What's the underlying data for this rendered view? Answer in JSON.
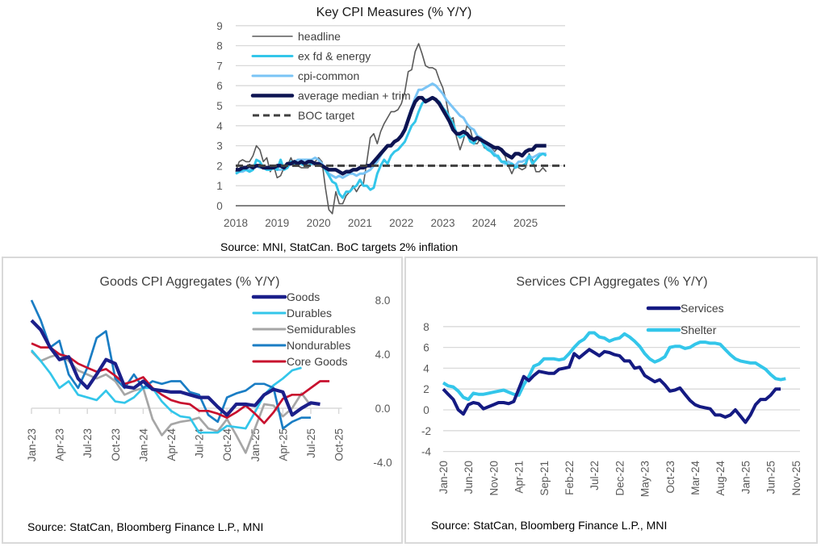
{
  "chart_data": [
    {
      "id": "key-cpi",
      "type": "line",
      "title": "Key CPI Measures (% Y/Y)",
      "source": "Source:  MNI, StatCan.  BoC targets 2% inflation",
      "x_start": "2018-01",
      "frequency": "monthly",
      "x_tick_labels": [
        "2018",
        "2019",
        "2020",
        "2021",
        "2022",
        "2023",
        "2024",
        "2025"
      ],
      "y_tick_labels": [
        "0",
        "1",
        "2",
        "3",
        "4",
        "5",
        "6",
        "7",
        "8",
        "9"
      ],
      "ylim": [
        0,
        9
      ],
      "grid": true,
      "legend_position": "top-left",
      "series": [
        {
          "name": "headline",
          "color": "#595959",
          "style": "thin",
          "values": [
            1.7,
            2.2,
            2.3,
            2.2,
            2.2,
            2.5,
            3.0,
            2.8,
            2.2,
            2.4,
            1.7,
            2.0,
            1.4,
            1.5,
            1.9,
            2.0,
            2.4,
            2.0,
            2.0,
            1.9,
            1.9,
            1.9,
            2.2,
            2.2,
            2.4,
            2.2,
            0.9,
            -0.2,
            -0.4,
            0.7,
            0.1,
            0.1,
            0.5,
            0.7,
            1.0,
            0.7,
            1.0,
            1.1,
            2.2,
            3.4,
            3.6,
            3.1,
            3.7,
            4.1,
            4.4,
            4.7,
            4.7,
            4.8,
            5.1,
            5.7,
            6.7,
            6.8,
            7.7,
            8.1,
            7.6,
            7.0,
            6.9,
            6.9,
            6.8,
            6.3,
            5.9,
            5.2,
            4.3,
            4.4,
            3.4,
            2.8,
            3.3,
            4.0,
            3.8,
            3.1,
            3.1,
            3.4,
            2.9,
            2.8,
            2.9,
            2.7,
            2.9,
            2.7,
            2.5,
            2.0,
            1.6,
            2.0,
            1.9,
            1.8,
            1.9,
            2.6,
            2.3,
            1.7,
            1.7,
            1.9,
            1.7
          ]
        },
        {
          "name": "ex fd & energy",
          "color": "#33c6ea",
          "style": "medium",
          "values": [
            1.6,
            1.7,
            1.8,
            1.8,
            1.7,
            1.8,
            2.3,
            2.2,
            1.9,
            1.8,
            1.8,
            1.9,
            1.8,
            2.3,
            1.8,
            1.9,
            2.2,
            2.1,
            2.1,
            2.1,
            2.0,
            2.0,
            2.1,
            2.1,
            2.1,
            2.0,
            1.8,
            1.5,
            1.2,
            1.1,
            0.6,
            0.4,
            0.7,
            0.7,
            0.9,
            1.0,
            1.3,
            1.0,
            1.0,
            0.8,
            0.9,
            1.6,
            2.0,
            2.3,
            2.1,
            2.5,
            2.7,
            2.8,
            3.0,
            3.2,
            3.6,
            4.0,
            4.2,
            4.7,
            5.1,
            5.3,
            5.3,
            5.4,
            5.3,
            5.2,
            4.9,
            4.7,
            4.4,
            4.1,
            3.6,
            3.4,
            3.5,
            3.6,
            3.2,
            3.1,
            3.4,
            3.3,
            3.0,
            2.8,
            2.7,
            2.5,
            2.5,
            2.2,
            2.2,
            2.0,
            2.1,
            1.9,
            2.0,
            2.0,
            2.1,
            2.5,
            2.1,
            2.3,
            2.5,
            2.6,
            2.5
          ]
        },
        {
          "name": "cpi-common",
          "color": "#7ac4f5",
          "style": "medium",
          "values": [
            1.6,
            1.7,
            1.7,
            1.8,
            1.8,
            1.9,
            2.0,
            1.9,
            1.9,
            1.8,
            1.8,
            1.9,
            1.8,
            1.8,
            1.9,
            2.0,
            2.1,
            2.2,
            2.3,
            2.3,
            2.3,
            2.3,
            2.3,
            2.4,
            2.3,
            2.1,
            1.8,
            1.6,
            1.5,
            1.4,
            1.5,
            1.4,
            1.5,
            1.6,
            1.6,
            1.5,
            1.6,
            1.6,
            1.7,
            1.8,
            2.0,
            2.2,
            2.5,
            2.8,
            3.0,
            3.0,
            3.2,
            3.3,
            3.5,
            3.8,
            4.4,
            4.9,
            5.4,
            5.8,
            5.8,
            5.9,
            6.0,
            6.1,
            6.0,
            5.8,
            5.6,
            5.3,
            5.1,
            4.9,
            4.7,
            4.5,
            4.4,
            4.1,
            3.9,
            3.8,
            3.5,
            3.4,
            3.2,
            3.0,
            2.8,
            2.6,
            2.4,
            2.2,
            2.1,
            2.2,
            2.1,
            2.0,
            2.2,
            2.2,
            2.3,
            2.5,
            2.4,
            2.5,
            2.6,
            2.6,
            2.6
          ]
        },
        {
          "name": "average median + trim",
          "color": "#0d1452",
          "style": "thick",
          "values": [
            1.8,
            1.8,
            1.9,
            1.9,
            2.0,
            1.9,
            2.0,
            2.0,
            1.9,
            1.9,
            1.9,
            1.9,
            2.0,
            2.0,
            1.9,
            2.1,
            2.1,
            2.2,
            2.1,
            2.2,
            2.1,
            2.2,
            2.2,
            2.1,
            2.1,
            2.0,
            1.9,
            1.8,
            1.8,
            1.8,
            1.7,
            1.6,
            1.7,
            1.7,
            1.8,
            1.8,
            1.9,
            1.9,
            2.0,
            2.0,
            2.2,
            2.4,
            2.6,
            2.8,
            3.0,
            3.0,
            3.2,
            3.3,
            3.5,
            3.8,
            4.3,
            4.8,
            5.2,
            5.4,
            5.4,
            5.2,
            5.3,
            5.4,
            5.3,
            5.1,
            4.8,
            4.5,
            4.2,
            3.8,
            3.6,
            3.6,
            3.7,
            3.6,
            3.4,
            3.3,
            3.4,
            3.3,
            3.2,
            3.1,
            3.0,
            2.9,
            2.9,
            2.8,
            2.6,
            2.5,
            2.4,
            2.6,
            2.6,
            2.5,
            2.7,
            2.8,
            2.8,
            3.0,
            3.0,
            3.0,
            3.0
          ]
        },
        {
          "name": "BOC target",
          "color": "#404040",
          "style": "dashed",
          "values": [
            2
          ]
        }
      ]
    },
    {
      "id": "goods-cpi",
      "type": "line",
      "title": "Goods CPI Aggregates (% Y/Y)",
      "source": "Source: StatCan, Bloomberg Finance L.P., MNI",
      "x_start": "2023-01",
      "frequency": "monthly",
      "x_tick_labels": [
        "Jan-23",
        "Apr-23",
        "Jul-23",
        "Oct-23",
        "Jan-24",
        "Apr-24",
        "Jul-24",
        "Oct-24",
        "Jan-25",
        "Apr-25",
        "Jul-25",
        "Oct-25"
      ],
      "y_tick_labels": [
        "8.0",
        "4.0",
        "0.0",
        "-4.0"
      ],
      "ylim": [
        -4,
        8
      ],
      "grid": false,
      "legend_position": "top-right",
      "series": [
        {
          "name": "Goods",
          "color": "#1b1f8a",
          "style": "thick",
          "values": [
            6.5,
            5.8,
            4.5,
            3.6,
            3.8,
            2.2,
            1.5,
            2.5,
            3.6,
            3.3,
            1.6,
            1.5,
            2.0,
            1.4,
            1.3,
            1.2,
            1.2,
            1.0,
            0.8,
            0.8,
            0.1,
            -0.5,
            0.3,
            0.3,
            0.2,
            1.0,
            1.4,
            1.2,
            -0.5,
            0.0,
            0.4,
            0.3
          ]
        },
        {
          "name": "Durables",
          "color": "#33c6ea",
          "style": "medium",
          "values": [
            4.3,
            3.5,
            2.6,
            1.5,
            2.0,
            1.0,
            0.8,
            0.6,
            1.3,
            0.5,
            0.4,
            0.8,
            1.5,
            1.5,
            0.5,
            -0.2,
            -0.6,
            -0.7,
            -1.8,
            -1.8,
            -1.8,
            -1.3,
            -1.4,
            -1.5,
            -0.3,
            1.0,
            1.7,
            2.2,
            2.8,
            3.0
          ]
        },
        {
          "name": "Semidurables",
          "color": "#a6a6a6",
          "style": "medium",
          "values": [
            4.2,
            3.5,
            3.8,
            4.0,
            3.5,
            2.8,
            2.5,
            2.2,
            2.5,
            2.0,
            1.0,
            1.3,
            1.5,
            -0.8,
            -2.0,
            -1.2,
            -1.0,
            -0.9,
            -0.7,
            -1.5,
            -1.7,
            -0.8,
            -2.0,
            -3.3,
            -1.5,
            0.3,
            0.2,
            -0.6,
            0.0,
            1.1,
            0.2
          ]
        },
        {
          "name": "Nondurables",
          "color": "#1a7dc4",
          "style": "medium",
          "values": [
            8.0,
            6.5,
            4.5,
            5.0,
            2.5,
            1.5,
            3.0,
            5.2,
            5.7,
            2.2,
            1.5,
            2.5,
            1.5,
            2.0,
            1.8,
            2.0,
            2.0,
            1.2,
            1.0,
            -0.5,
            -1.0,
            0.8,
            1.1,
            1.3,
            1.8,
            1.8,
            1.5,
            -1.5,
            -1.0,
            -0.7,
            -0.7
          ]
        },
        {
          "name": "Core Goods",
          "color": "#c8102e",
          "style": "medium",
          "values": [
            4.8,
            4.5,
            4.5,
            4.0,
            3.8,
            3.3,
            3.0,
            2.7,
            2.9,
            2.4,
            1.8,
            2.0,
            2.3,
            1.5,
            1.0,
            0.6,
            0.4,
            0.3,
            -0.2,
            -0.2,
            -0.4,
            -0.7,
            -0.3,
            0.2,
            -0.4,
            -1.1,
            -0.3,
            0.7,
            1.0,
            1.0,
            1.5,
            2.0,
            2.0
          ]
        }
      ]
    },
    {
      "id": "services-cpi",
      "type": "line",
      "title": "Services CPI Aggregates (% Y/Y)",
      "source": "Source: StatCan, Bloomberg Finance L.P., MNI",
      "x_start": "2020-01",
      "frequency": "monthly",
      "x_tick_labels": [
        "Jan-20",
        "Jun-20",
        "Nov-20",
        "Apr-21",
        "Sep-21",
        "Feb-22",
        "Jul-22",
        "Dec-22",
        "May-23",
        "Oct-23",
        "Mar-24",
        "Aug-24",
        "Jan-25",
        "Jun-25",
        "Nov-25"
      ],
      "y_tick_labels": [
        "8",
        "6",
        "4",
        "2",
        "0",
        "-2",
        "-4"
      ],
      "ylim": [
        -4,
        8
      ],
      "grid": true,
      "legend_position": "top-right",
      "series": [
        {
          "name": "Services",
          "color": "#141a82",
          "style": "thick",
          "values": [
            2.0,
            1.5,
            1.0,
            0.0,
            -0.4,
            0.5,
            0.7,
            0.6,
            0.1,
            0.3,
            0.5,
            0.7,
            0.7,
            0.6,
            0.8,
            2.0,
            3.2,
            2.8,
            3.3,
            3.7,
            3.6,
            3.5,
            3.5,
            3.9,
            4.0,
            4.1,
            5.4,
            5.0,
            5.4,
            5.8,
            5.5,
            5.2,
            5.6,
            5.5,
            5.3,
            5.2,
            4.7,
            4.7,
            4.0,
            4.1,
            3.3,
            3.0,
            2.7,
            2.9,
            2.4,
            1.8,
            1.9,
            2.1,
            1.5,
            0.9,
            0.5,
            0.3,
            0.2,
            0.1,
            -0.5,
            -0.5,
            -0.7,
            -0.5,
            0.0,
            -0.6,
            -1.2,
            -0.5,
            0.5,
            1.0,
            1.0,
            1.4,
            2.0,
            2.0
          ]
        },
        {
          "name": "Shelter",
          "color": "#33c6ea",
          "style": "thick",
          "values": [
            2.6,
            2.3,
            2.2,
            1.8,
            1.2,
            1.0,
            1.6,
            1.5,
            1.5,
            1.6,
            1.7,
            1.8,
            1.9,
            1.7,
            1.5,
            1.4,
            2.4,
            3.2,
            4.2,
            4.4,
            4.9,
            4.9,
            4.9,
            4.8,
            4.9,
            5.4,
            6.0,
            6.5,
            6.8,
            7.4,
            7.4,
            7.0,
            6.9,
            6.6,
            6.8,
            6.9,
            7.3,
            7.0,
            6.6,
            6.1,
            5.4,
            4.9,
            4.6,
            4.8,
            5.1,
            6.0,
            6.1,
            6.1,
            5.9,
            6.0,
            6.3,
            6.5,
            6.5,
            6.4,
            6.4,
            6.3,
            5.8,
            5.3,
            4.9,
            4.7,
            4.6,
            4.5,
            4.5,
            4.2,
            3.9,
            3.4,
            3.0,
            2.9,
            3.0
          ]
        }
      ]
    }
  ]
}
